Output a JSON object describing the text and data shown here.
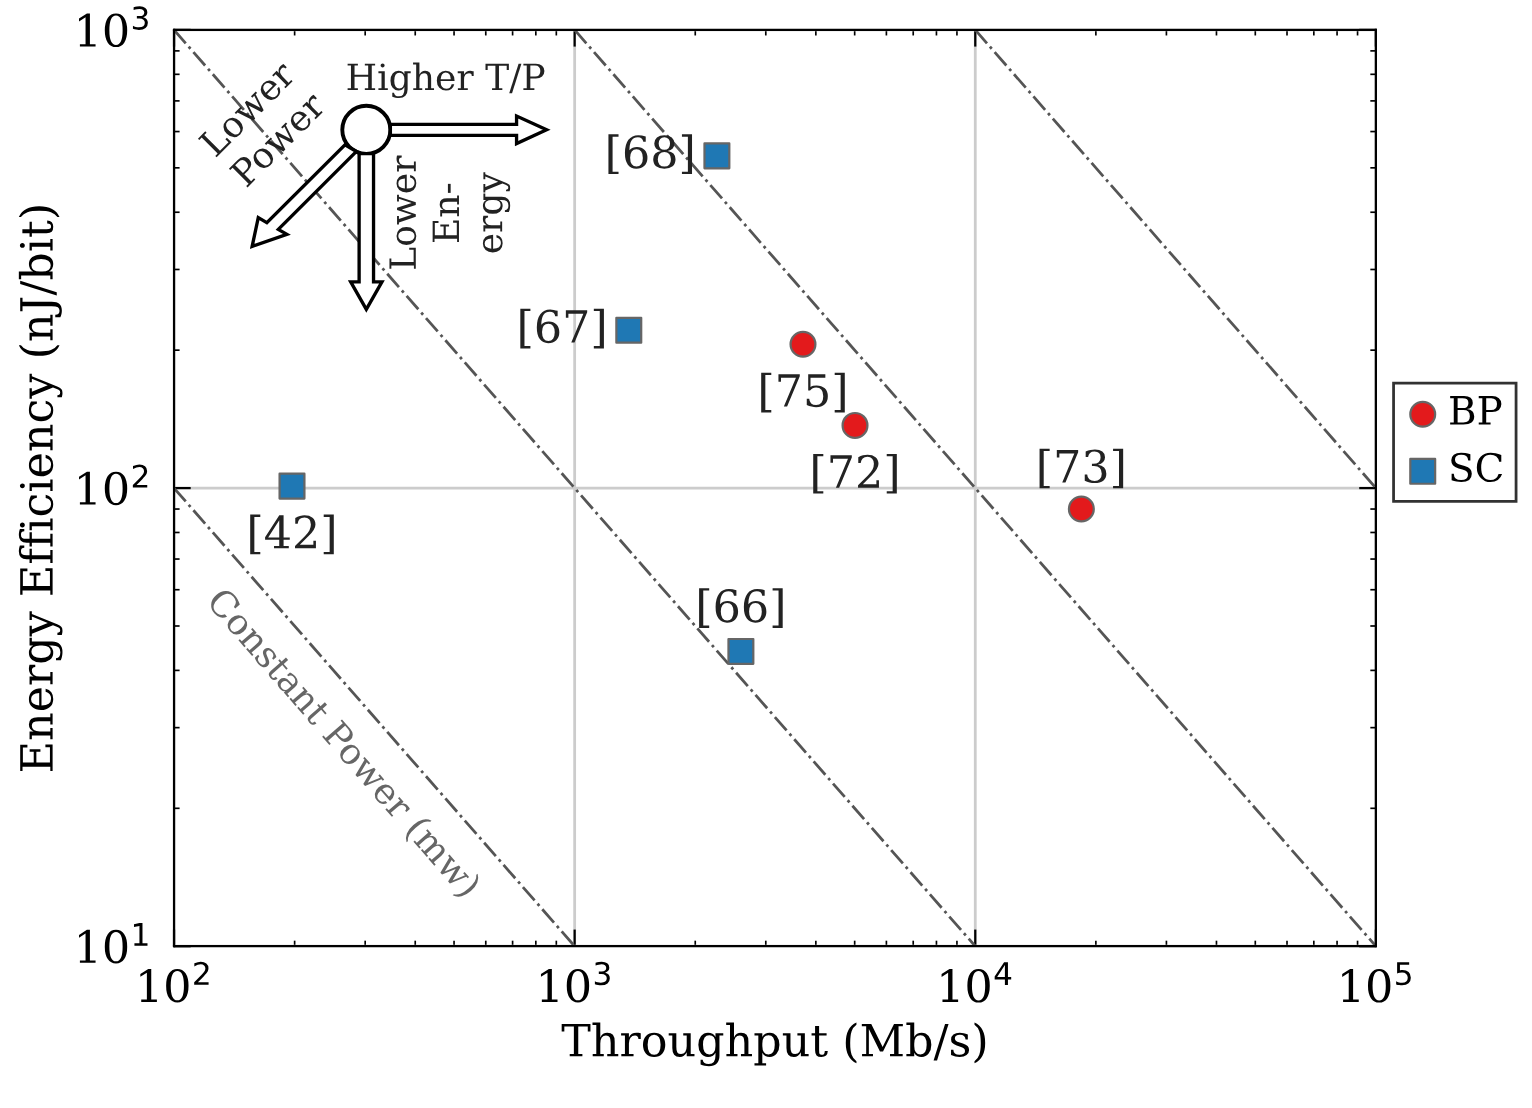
{
  "chart_data": {
    "type": "scatter",
    "xlabel": "Throughput (Mb/s)",
    "ylabel": "Energy Efficiency (nJ/bit)",
    "log": "xy",
    "xlim": [
      100,
      100000
    ],
    "ylim": [
      10,
      1000
    ],
    "xticks": [
      {
        "value": 100,
        "label": "10$^{2}$"
      },
      {
        "value": 1000,
        "label": "10$^{3}$"
      },
      {
        "value": 10000,
        "label": "10$^{4}$"
      },
      {
        "value": 100000,
        "label": "10$^{5}$"
      }
    ],
    "yticks": [
      {
        "value": 10,
        "label": "10$^{1}$"
      },
      {
        "value": 100,
        "label": "10$^{2}$"
      },
      {
        "value": 1000,
        "label": "10$^{3}$"
      }
    ],
    "grid": true,
    "legend": "right",
    "series": [
      {
        "name": "BP",
        "color": "#e31a1c",
        "marker": "circle",
        "x": [
          3715,
          5010,
          18400
        ],
        "values": [
          206,
          137,
          90
        ]
      },
      {
        "name": "SC",
        "color": "#1f78b4",
        "marker": "square",
        "x": [
          197,
          1365,
          2265,
          2600
        ],
        "values": [
          101,
          221,
          531,
          44
        ]
      },
      {
        "type": "line",
        "color": "#555555",
        "line_style": "dashdot",
        "marker": "none",
        "x": [
          100,
          1000
        ],
        "values": [
          100,
          10
        ]
      },
      {
        "type": "line",
        "color": "#555555",
        "line_style": "dashdot",
        "marker": "none",
        "x": [
          100,
          10000
        ],
        "values": [
          1000,
          10
        ]
      },
      {
        "type": "line",
        "color": "#555555",
        "line_style": "dashdot",
        "marker": "none",
        "x": [
          1000,
          100000
        ],
        "values": [
          1000,
          10
        ]
      },
      {
        "type": "line",
        "color": "#555555",
        "line_style": "dashdot",
        "marker": "none",
        "x": [
          10000,
          100000
        ],
        "values": [
          1000,
          100
        ]
      }
    ],
    "annotations": [
      "Higher T/P",
      "Lower\nPower",
      "Lower\nEn-\nergy",
      "Constant Power (mw)",
      {
        "text": "[75]",
        "x": 3715,
        "y": 206
      },
      {
        "text": "[72]",
        "x": 5010,
        "y": 137
      },
      {
        "text": "[73]",
        "x": 18400,
        "y": 90
      },
      {
        "text": "[42]",
        "x": 197,
        "y": 101
      },
      {
        "text": "[67]",
        "x": 1365,
        "y": 221
      },
      {
        "text": "[68]",
        "x": 2265,
        "y": 531
      },
      {
        "text": "[66]",
        "x": 2600,
        "y": 44
      }
    ]
  }
}
